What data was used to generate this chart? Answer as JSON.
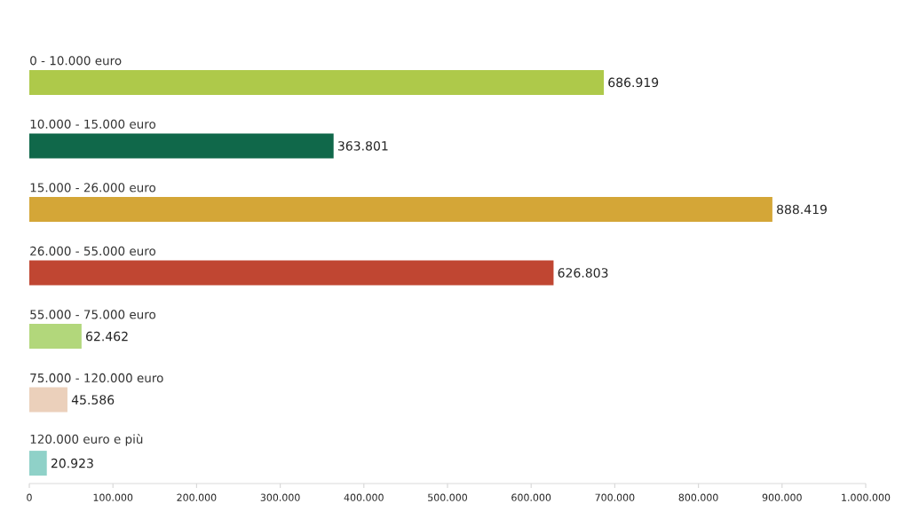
{
  "chart_data": {
    "type": "bar",
    "orientation": "horizontal",
    "categories": [
      "0 - 10.000 euro",
      "10.000 - 15.000 euro",
      "15.000 - 26.000 euro",
      "26.000 - 55.000 euro",
      "55.000 - 75.000 euro",
      "75.000 - 120.000 euro",
      "120.000 euro e più"
    ],
    "values": [
      686919,
      363801,
      888419,
      626803,
      62462,
      45586,
      20923
    ],
    "value_labels": [
      "686.919",
      "363.801",
      "888.419",
      "626.803",
      "62.462",
      "45.586",
      "20.923"
    ],
    "colors": [
      "#aec94a",
      "#10684a",
      "#d4a637",
      "#c04632",
      "#b2d77b",
      "#ebd0bb",
      "#8fd1c8"
    ],
    "xlim": [
      0,
      1000000
    ],
    "xticks": [
      0,
      {
        "value": 100000,
        "label": "100.000"
      },
      {
        "value": 200000,
        "label": "200.000"
      },
      {
        "value": 300000,
        "label": "300.000"
      },
      {
        "value": 400000,
        "label": "400.000"
      },
      {
        "value": 500000,
        "label": "500.000"
      },
      {
        "value": 600000,
        "label": "600.000"
      },
      {
        "value": 700000,
        "label": "700.000"
      },
      {
        "value": 800000,
        "label": "800.000"
      },
      {
        "value": 900000,
        "label": "900.000"
      },
      {
        "value": 1000000,
        "label": "1.000.000"
      }
    ],
    "grid": false
  }
}
